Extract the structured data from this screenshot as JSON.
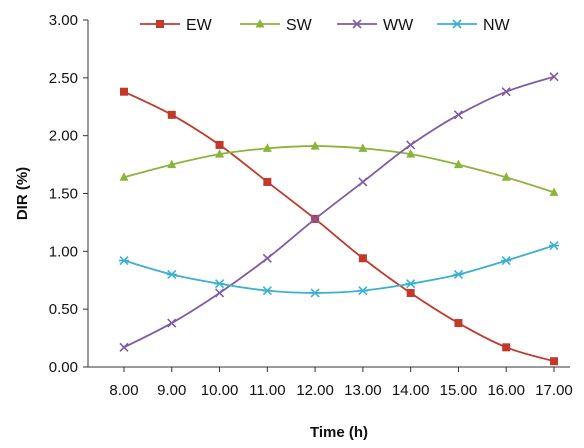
{
  "chart_data": {
    "type": "line",
    "title": "",
    "xlabel": "Time (h)",
    "ylabel": "DIR (%)",
    "categories": [
      "8.00",
      "9.00",
      "10.00",
      "11.00",
      "12.00",
      "13.00",
      "14.00",
      "15.00",
      "16.00",
      "17.00"
    ],
    "y_ticks": [
      "0.00",
      "0.50",
      "1.00",
      "1.50",
      "2.00",
      "2.50",
      "3.00"
    ],
    "ylim": [
      0,
      3
    ],
    "grid": false,
    "legend_position": "top",
    "series": [
      {
        "name": "EW",
        "color": "#c0392b",
        "marker": "square",
        "values": [
          2.38,
          2.18,
          1.92,
          1.6,
          1.28,
          0.94,
          0.64,
          0.38,
          0.17,
          0.05
        ]
      },
      {
        "name": "SW",
        "color": "#8db33a",
        "marker": "triangle",
        "values": [
          1.64,
          1.75,
          1.84,
          1.89,
          1.91,
          1.89,
          1.84,
          1.75,
          1.64,
          1.51
        ]
      },
      {
        "name": "WW",
        "color": "#7e5ca6",
        "marker": "x",
        "values": [
          0.17,
          0.38,
          0.64,
          0.94,
          1.28,
          1.6,
          1.92,
          2.18,
          2.38,
          2.51
        ]
      },
      {
        "name": "NW",
        "color": "#3bb0d0",
        "marker": "star",
        "values": [
          0.92,
          0.8,
          0.72,
          0.66,
          0.64,
          0.66,
          0.72,
          0.8,
          0.92,
          1.05
        ]
      }
    ]
  }
}
